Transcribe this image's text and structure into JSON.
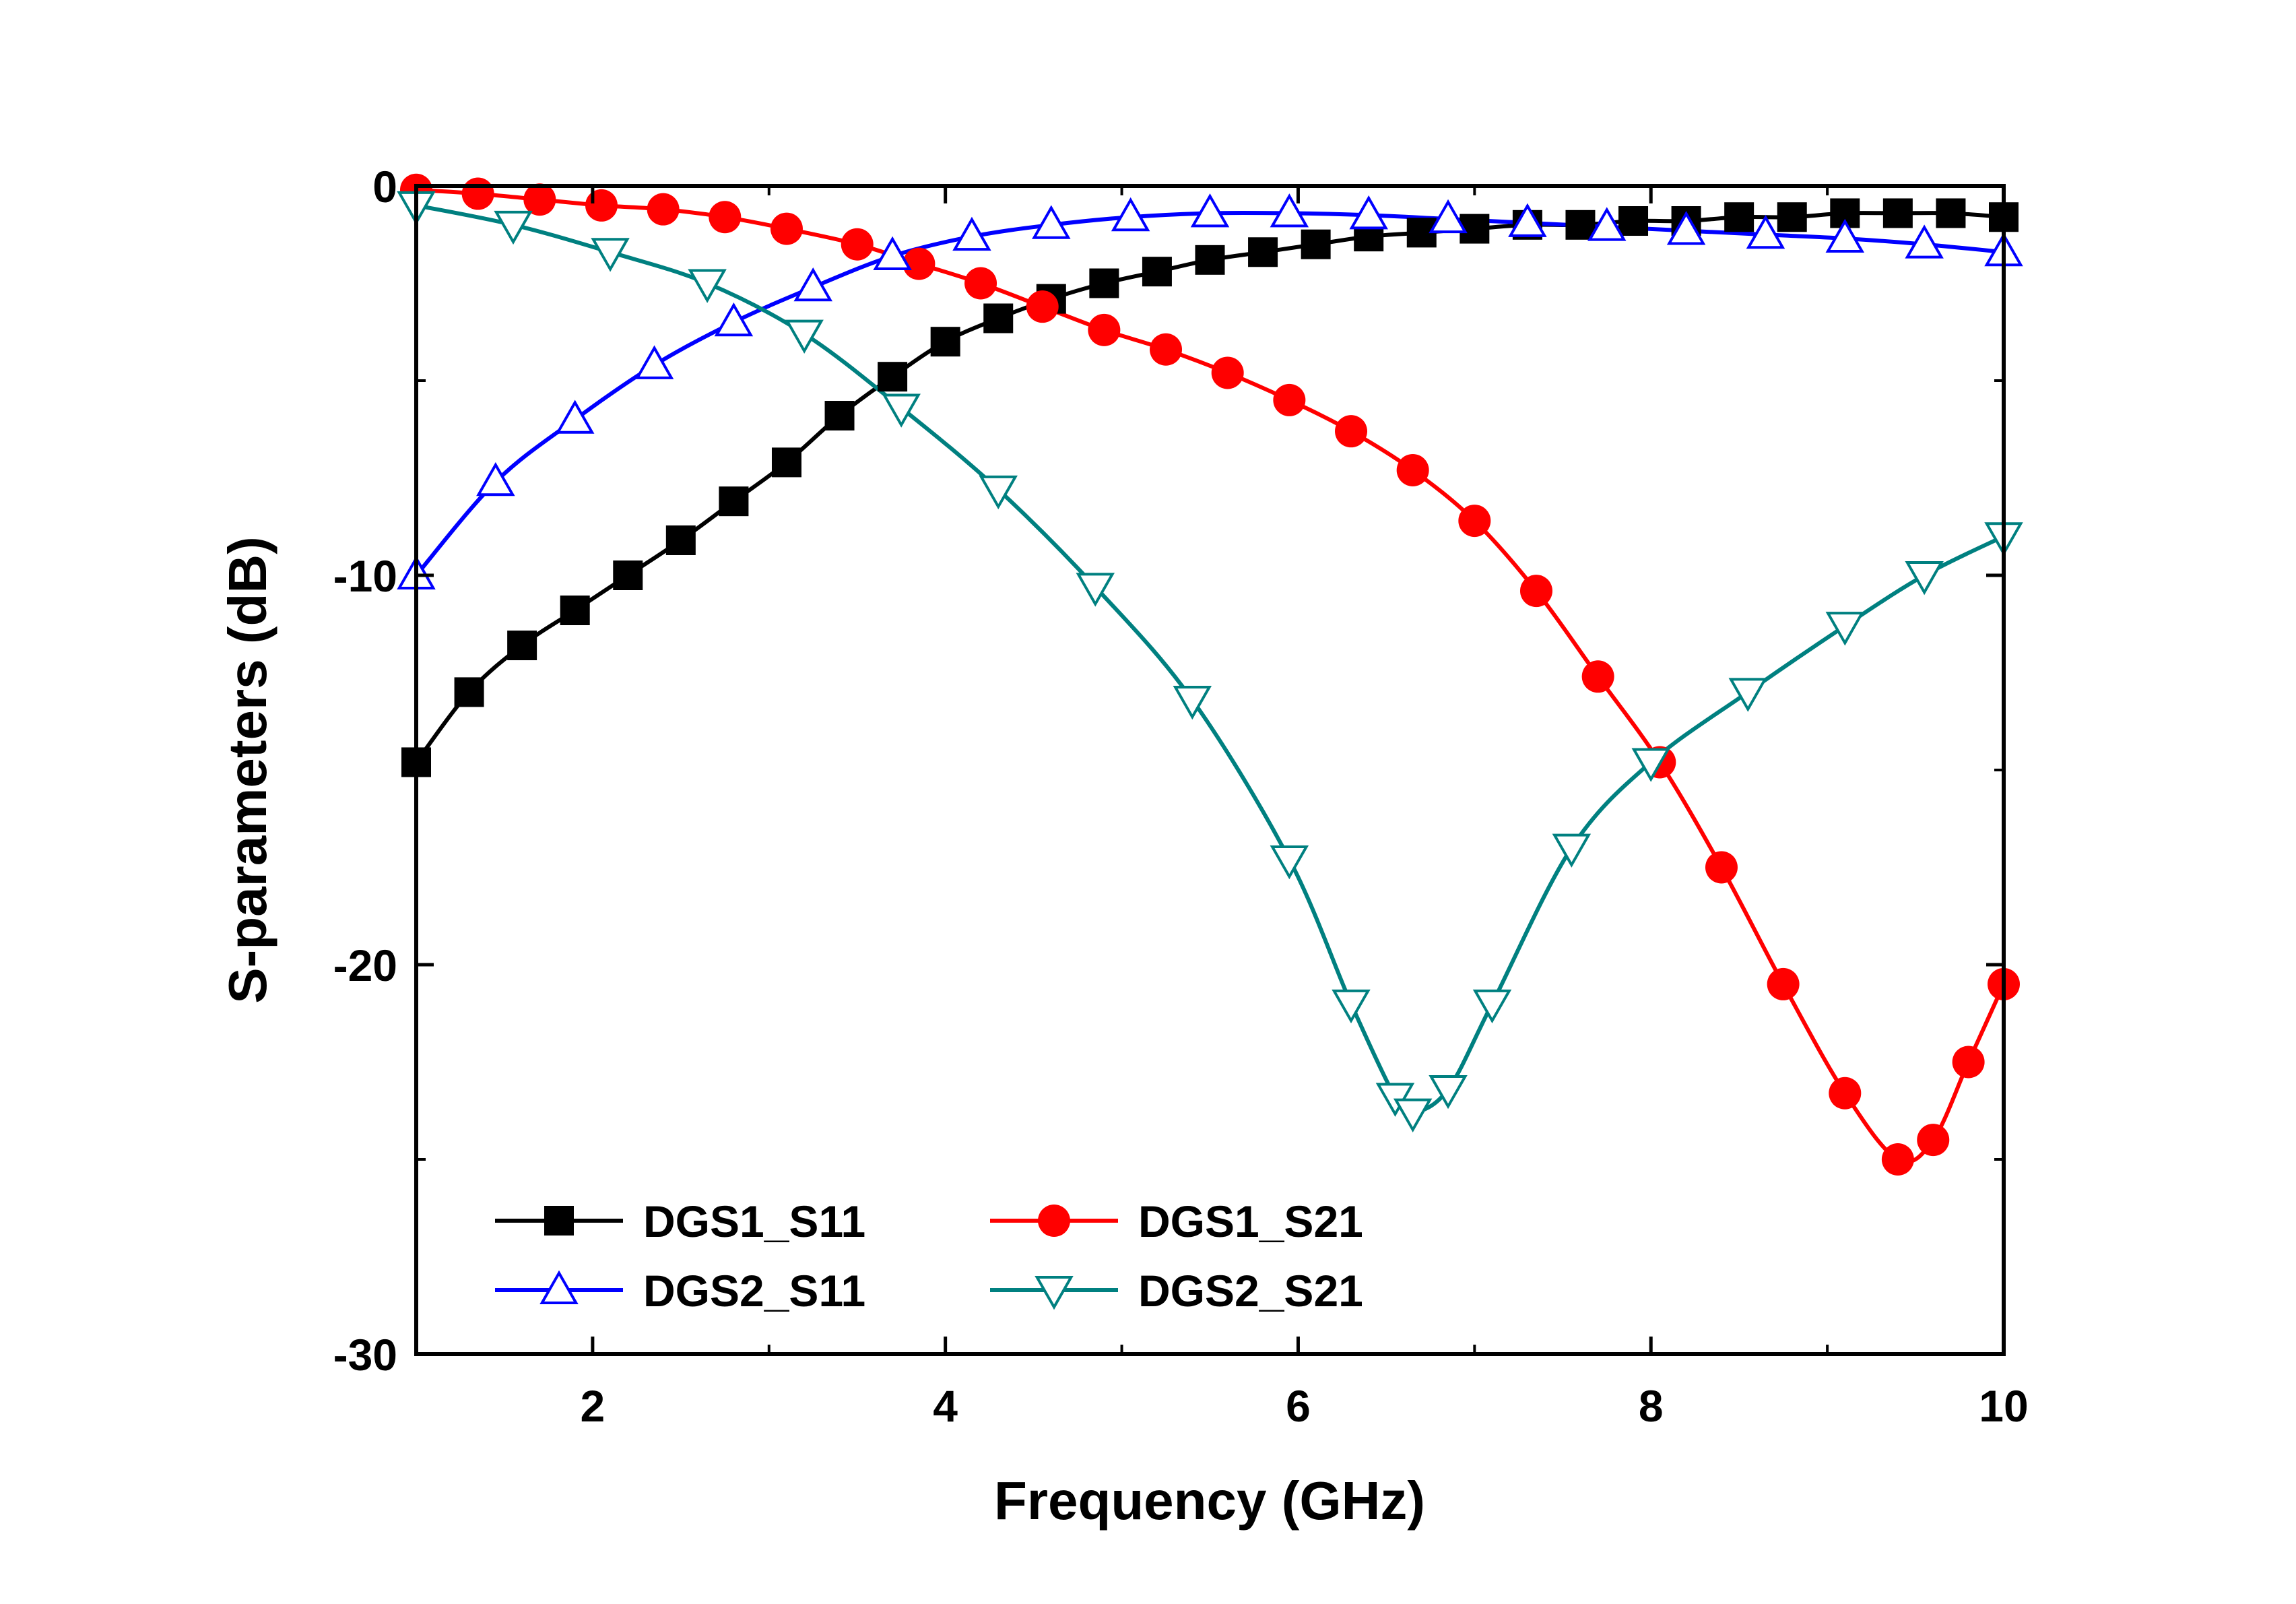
{
  "chart_data": {
    "type": "line",
    "xlabel": "Frequency  (GHz)",
    "ylabel": "S-parameters  (dB)",
    "xlim": [
      1,
      10
    ],
    "ylim": [
      -30,
      0
    ],
    "x_ticks": [
      2,
      4,
      6,
      8,
      10
    ],
    "y_ticks": [
      0,
      -10,
      -20,
      -30
    ],
    "grid": false,
    "legend_position": "bottom-left",
    "series": [
      {
        "name": "DGS1_S11",
        "color": "#000000",
        "marker": "square",
        "x": [
          1.0,
          1.3,
          1.6,
          1.9,
          2.2,
          2.5,
          2.8,
          3.1,
          3.4,
          3.7,
          4.0,
          4.3,
          4.6,
          4.9,
          5.2,
          5.5,
          5.8,
          6.1,
          6.4,
          6.7,
          7.0,
          7.3,
          7.6,
          7.9,
          8.2,
          8.5,
          8.8,
          9.1,
          9.4,
          9.7,
          10.0
        ],
        "y": [
          -14.8,
          -13.0,
          -11.8,
          -10.9,
          -10.0,
          -9.1,
          -8.1,
          -7.1,
          -5.9,
          -4.9,
          -4.0,
          -3.4,
          -2.9,
          -2.5,
          -2.2,
          -1.9,
          -1.7,
          -1.5,
          -1.3,
          -1.2,
          -1.1,
          -1.0,
          -1.0,
          -0.9,
          -0.9,
          -0.8,
          -0.8,
          -0.7,
          -0.7,
          -0.7,
          -0.8
        ]
      },
      {
        "name": "DGS1_S21",
        "color": "#ff0000",
        "marker": "circle",
        "x": [
          1.0,
          1.35,
          1.7,
          2.05,
          2.4,
          2.75,
          3.1,
          3.5,
          3.85,
          4.2,
          4.55,
          4.9,
          5.25,
          5.6,
          5.95,
          6.3,
          6.65,
          7.0,
          7.35,
          7.7,
          8.05,
          8.4,
          8.75,
          9.1,
          9.4,
          9.6,
          9.8,
          10.0
        ],
        "y": [
          -0.1,
          -0.2,
          -0.35,
          -0.5,
          -0.6,
          -0.8,
          -1.1,
          -1.5,
          -2.0,
          -2.5,
          -3.1,
          -3.7,
          -4.2,
          -4.8,
          -5.5,
          -6.3,
          -7.3,
          -8.6,
          -10.4,
          -12.6,
          -14.8,
          -17.5,
          -20.5,
          -23.3,
          -25.0,
          -24.5,
          -22.5,
          -20.5
        ]
      },
      {
        "name": "DGS2_S11",
        "color": "#0000ff",
        "marker": "triangle-up",
        "x": [
          1.0,
          1.45,
          1.9,
          2.35,
          2.8,
          3.25,
          3.7,
          4.15,
          4.6,
          5.05,
          5.5,
          5.95,
          6.4,
          6.85,
          7.3,
          7.75,
          8.2,
          8.65,
          9.1,
          9.55,
          10.0
        ],
        "y": [
          -10.0,
          -7.6,
          -6.0,
          -4.6,
          -3.5,
          -2.6,
          -1.8,
          -1.3,
          -1.0,
          -0.8,
          -0.7,
          -0.7,
          -0.75,
          -0.85,
          -0.95,
          -1.05,
          -1.15,
          -1.25,
          -1.35,
          -1.5,
          -1.7
        ]
      },
      {
        "name": "DGS2_S21",
        "color": "#008080",
        "marker": "triangle-down",
        "x": [
          1.0,
          1.55,
          2.1,
          2.65,
          3.2,
          3.75,
          4.3,
          4.85,
          5.4,
          5.95,
          6.3,
          6.55,
          6.65,
          6.85,
          7.1,
          7.55,
          8.0,
          8.55,
          9.1,
          9.55,
          10.0
        ],
        "y": [
          -0.5,
          -1.0,
          -1.7,
          -2.5,
          -3.8,
          -5.7,
          -7.8,
          -10.3,
          -13.2,
          -17.3,
          -21.0,
          -23.4,
          -23.8,
          -23.2,
          -21.0,
          -17.0,
          -14.8,
          -13.0,
          -11.3,
          -10.0,
          -9.0
        ]
      }
    ]
  }
}
